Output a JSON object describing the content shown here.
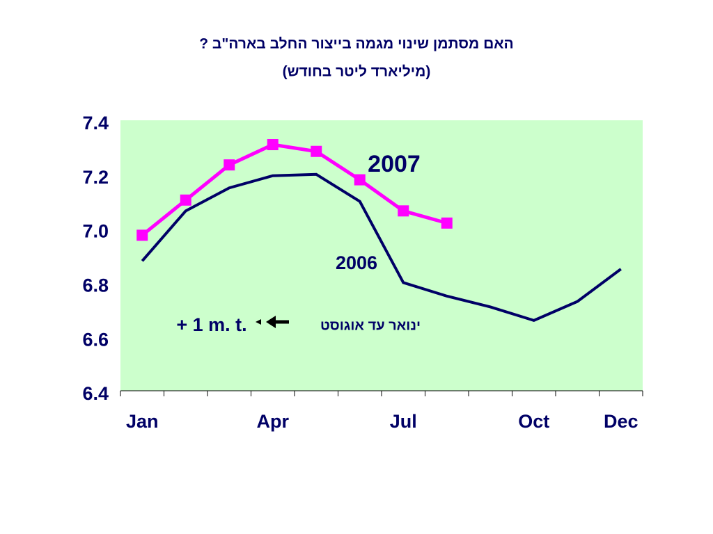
{
  "chart_data": {
    "type": "line",
    "title": "האם מסתמן שינוי מגמה בייצור החלב בארה\"ב ?",
    "subtitle": "(מיליארד ליטר בחודש)",
    "categories": [
      "Jan",
      null,
      null,
      "Apr",
      null,
      null,
      "Jul",
      null,
      null,
      "Oct",
      null,
      "Dec"
    ],
    "series": [
      {
        "name": "2006",
        "color": "#000066",
        "values": [
          6.88,
          7.065,
          7.15,
          7.195,
          7.2,
          7.1,
          6.8,
          6.75,
          6.71,
          6.66,
          6.73,
          6.85
        ]
      },
      {
        "name": "2007",
        "color": "#ff00ff",
        "values": [
          6.975,
          7.105,
          7.235,
          7.31,
          7.285,
          7.18,
          7.065,
          7.02,
          null,
          null,
          null,
          null
        ]
      }
    ],
    "ylim": [
      6.4,
      7.4
    ],
    "yticks": [
      6.4,
      6.6,
      6.8,
      {
        "value": 7,
        "label": "7.0"
      },
      7.2,
      7.4
    ],
    "annotations": [
      "+ 1 m. t.",
      "ינואר עד אוגוסט"
    ],
    "plot_background": "#ccffcc"
  }
}
